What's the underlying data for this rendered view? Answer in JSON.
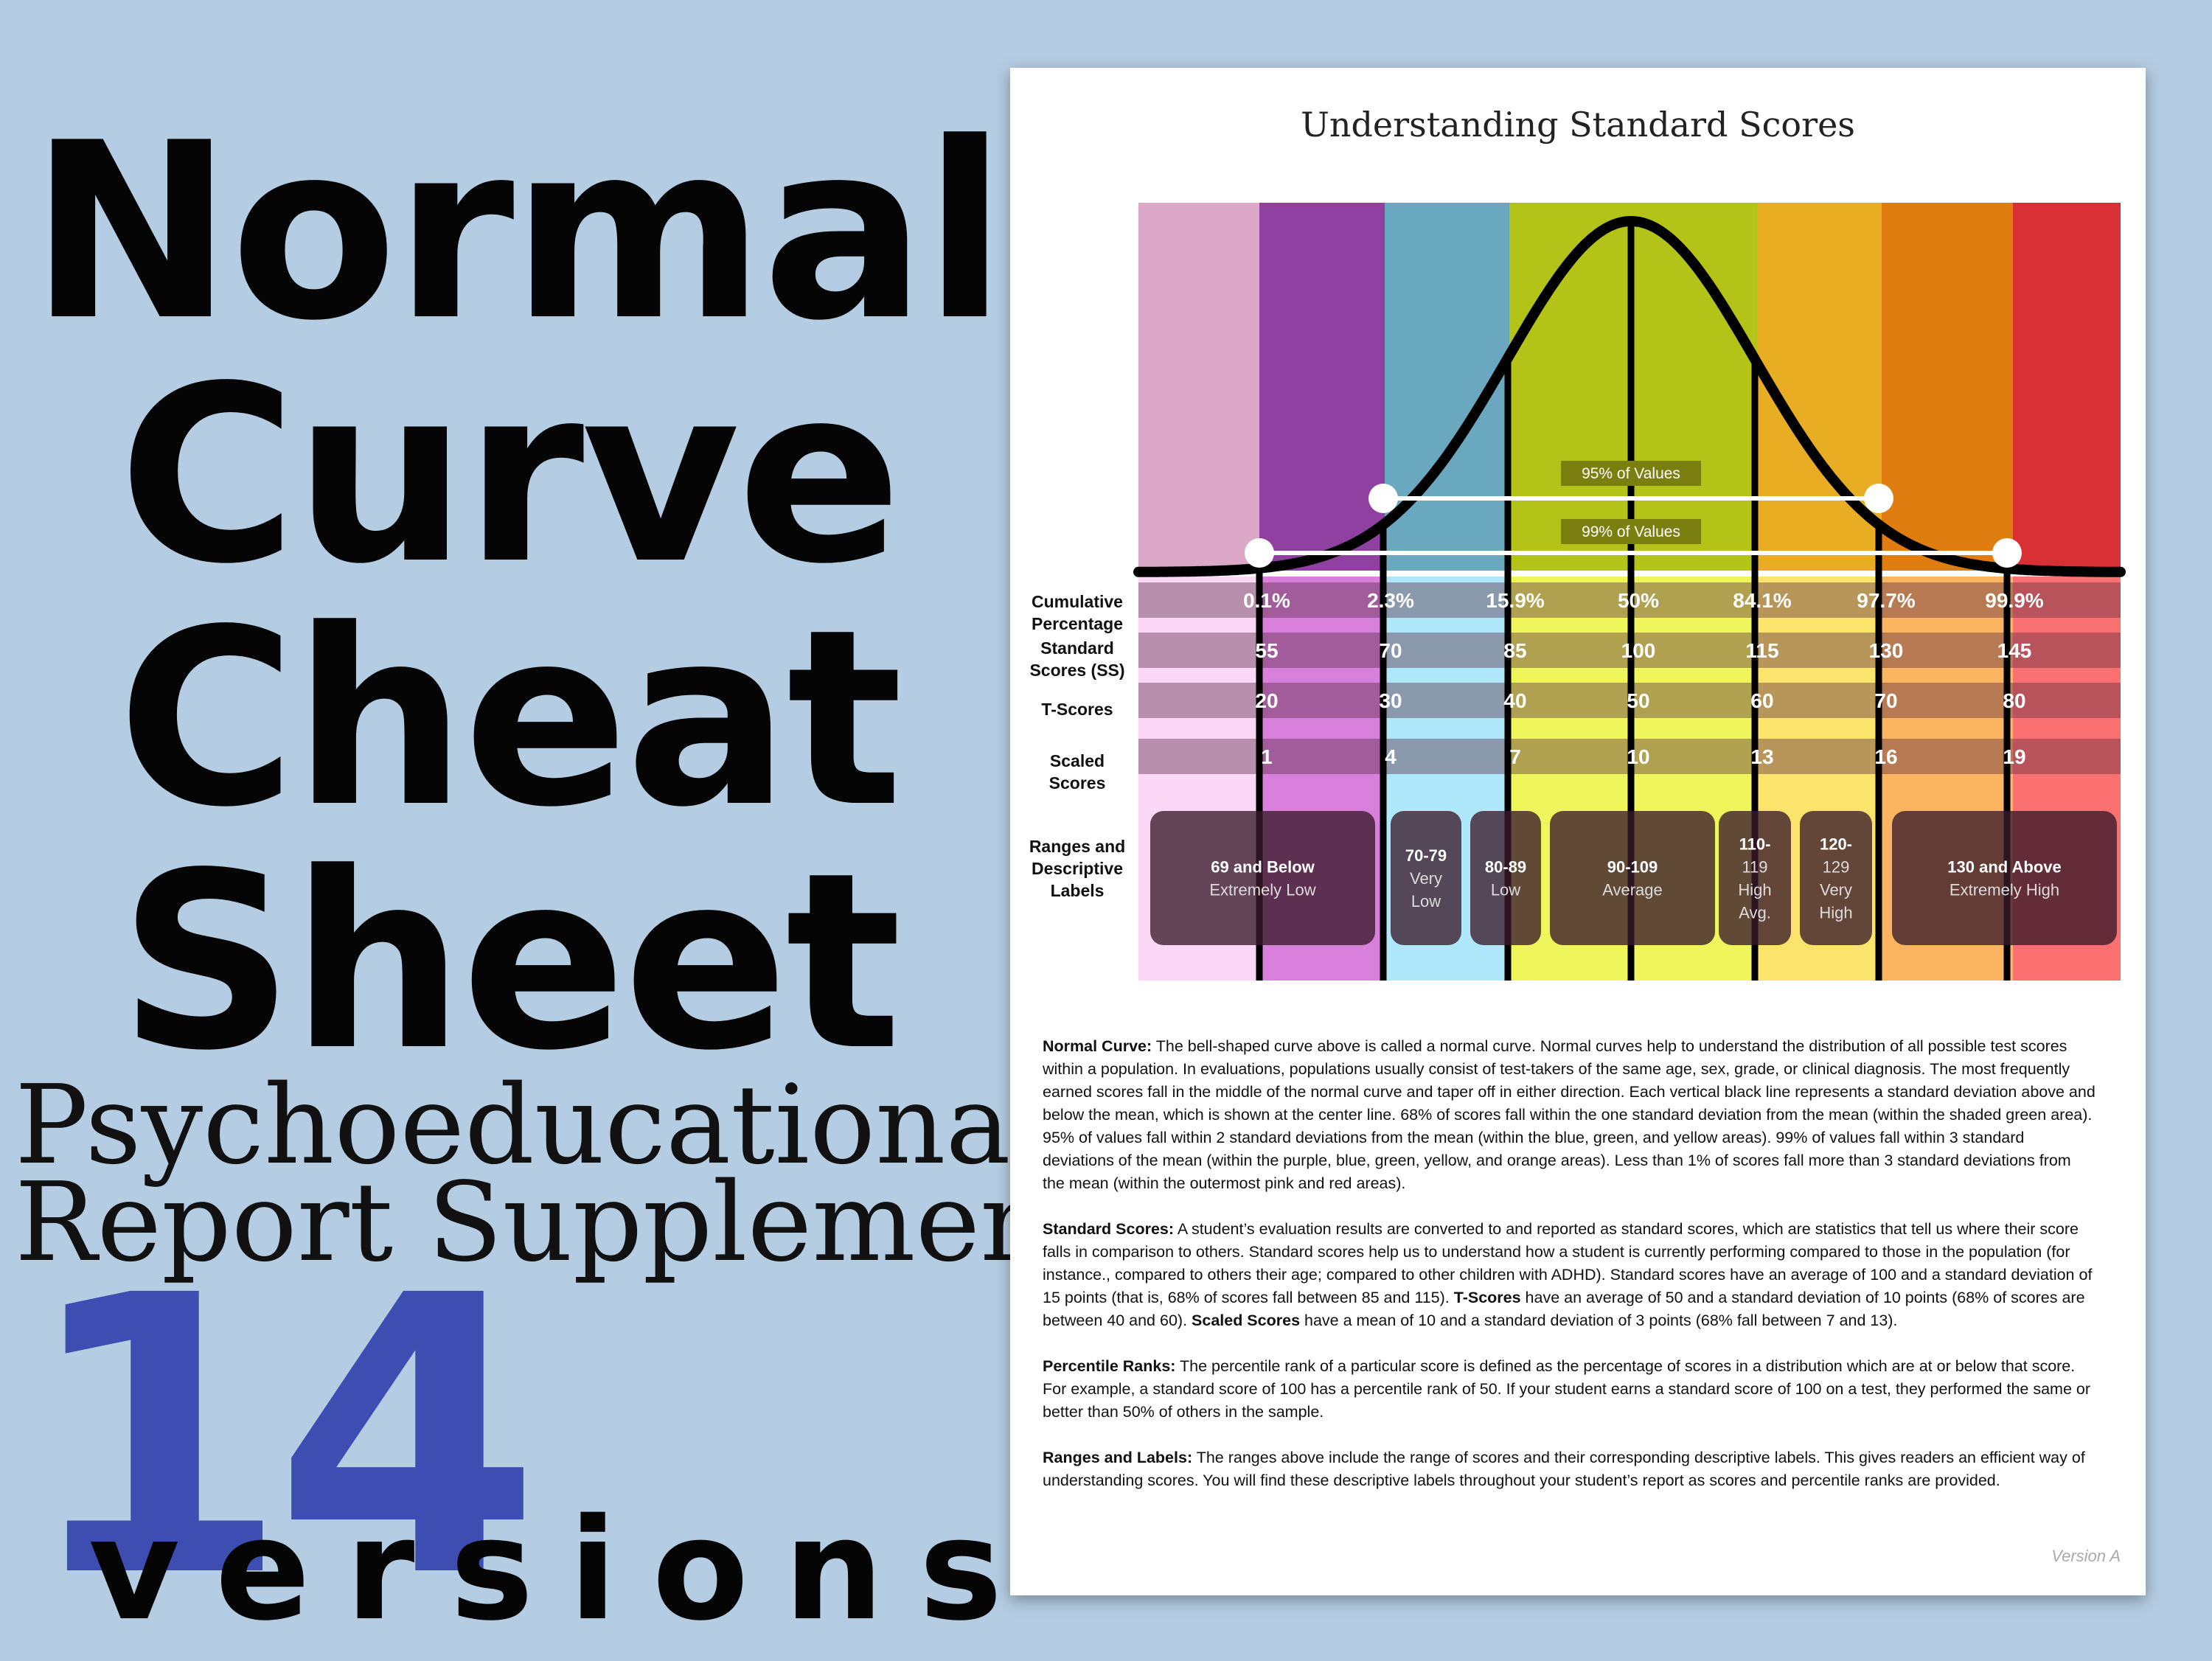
{
  "promo": {
    "title_lines": [
      "Normal",
      "Curve",
      "Cheat",
      "Sheet"
    ],
    "subtitle_lines": [
      "Psychoeducational",
      "Report Supplement"
    ],
    "count": "14",
    "count_word": "versions"
  },
  "document": {
    "title": "Understanding Standard Scores",
    "version": "Version A",
    "paragraphs": [
      {
        "segments": [
          {
            "b": true,
            "t": "Normal Curve:"
          },
          {
            "b": false,
            "t": " The bell-shaped curve above is called a normal curve.  Normal curves help to understand the distribution of all possible test scores within a population.  In evaluations, populations usually consist of test-takers of the same age, sex, grade, or clinical diagnosis. The most frequently earned scores fall in the middle of the normal curve and taper off in either direction.  Each vertical black line represents a standard deviation above and below the mean, which is shown at the center line.  68% of scores fall within the one standard deviation from the mean (within the shaded green area).  95% of values fall within 2 standard deviations from the mean (within the blue, green, and yellow areas).  99% of values fall within 3 standard deviations of the mean (within the purple, blue, green, yellow, and orange areas).  Less than 1% of scores fall more than 3 standard deviations from the mean (within the outermost pink and red areas)."
          }
        ]
      },
      {
        "segments": [
          {
            "b": true,
            "t": "Standard Scores:"
          },
          {
            "b": false,
            "t": "  A student’s evaluation results are converted to and reported as standard scores, which are statistics that tell us where their score falls in comparison to others.  Standard scores help us to understand how a student is currently performing compared to those in the population (for instance., compared to others their age; compared to other children with ADHD).  Standard scores have an average of 100 and a standard deviation of 15 points (that is, 68% of scores fall between 85 and 115).  "
          },
          {
            "b": true,
            "t": "T-Scores"
          },
          {
            "b": false,
            "t": " have an average of 50 and a standard deviation of 10 points (68% of scores are between 40 and 60).  "
          },
          {
            "b": true,
            "t": "Scaled Scores"
          },
          {
            "b": false,
            "t": " have a mean of 10 and a standard deviation of 3 points (68% fall between 7 and 13)."
          }
        ]
      },
      {
        "segments": [
          {
            "b": true,
            "t": "Percentile Ranks:"
          },
          {
            "b": false,
            "t": "  The percentile rank of a particular score is defined as the percentage of scores in a distribution which are at or below that score.  For example, a standard score of 100 has a percentile rank of 50.  If your student earns a standard score of 100 on a test, they performed the same or better than 50% of others in the sample."
          }
        ]
      },
      {
        "segments": [
          {
            "b": true,
            "t": "Ranges and Labels:"
          },
          {
            "b": false,
            "t": "  The ranges above include the range of scores and their corresponding descriptive labels.  This gives readers an efficient way of understanding scores.  You will find these descriptive labels throughout your student’s report as scores and percentile ranks are provided."
          }
        ]
      }
    ]
  },
  "chart_data": {
    "type": "area",
    "curve": "normal",
    "band_colors_top": [
      "#dca8c8",
      "#9040a0",
      "#6aa8c0",
      "#b4c318",
      "#b4c318",
      "#e9ad23",
      "#e07d10",
      "#d83035"
    ],
    "band_colors_bottom": [
      "#fbd8f6",
      "#d880dc",
      "#aee8fa",
      "#eef65c",
      "#eef65c",
      "#fbe46c",
      "#fbb460",
      "#fb7070"
    ],
    "bracket_labels": [
      "95% of Values",
      "99% of Values"
    ],
    "row_labels": [
      [
        "Cumulative",
        "Percentage"
      ],
      [
        "Standard",
        "Scores (SS)"
      ],
      [
        "T-Scores"
      ],
      [
        "Scaled",
        "Scores"
      ],
      [
        "Ranges and",
        "Descriptive",
        "Labels"
      ]
    ],
    "cumulative_percentage": [
      "0.1%",
      "2.3%",
      "15.9%",
      "50%",
      "84.1%",
      "97.7%",
      "99.9%"
    ],
    "standard_scores": [
      "55",
      "70",
      "85",
      "100",
      "115",
      "130",
      "145"
    ],
    "t_scores": [
      "20",
      "30",
      "40",
      "50",
      "60",
      "70",
      "80"
    ],
    "scaled_scores": [
      "1",
      "4",
      "7",
      "10",
      "13",
      "16",
      "19"
    ],
    "ranges": [
      {
        "lines": [
          "69 and Below",
          "Extremely Low"
        ]
      },
      {
        "lines": [
          "70-79",
          "Very",
          "Low"
        ]
      },
      {
        "lines": [
          "80-89",
          "Low"
        ]
      },
      {
        "lines": [
          "90-109",
          "Average"
        ]
      },
      {
        "lines": [
          "110-",
          "119",
          "High",
          "Avg."
        ]
      },
      {
        "lines": [
          "120-",
          "129",
          "Very",
          "High"
        ]
      },
      {
        "lines": [
          "130 and Above",
          "Extremely High"
        ]
      }
    ]
  }
}
